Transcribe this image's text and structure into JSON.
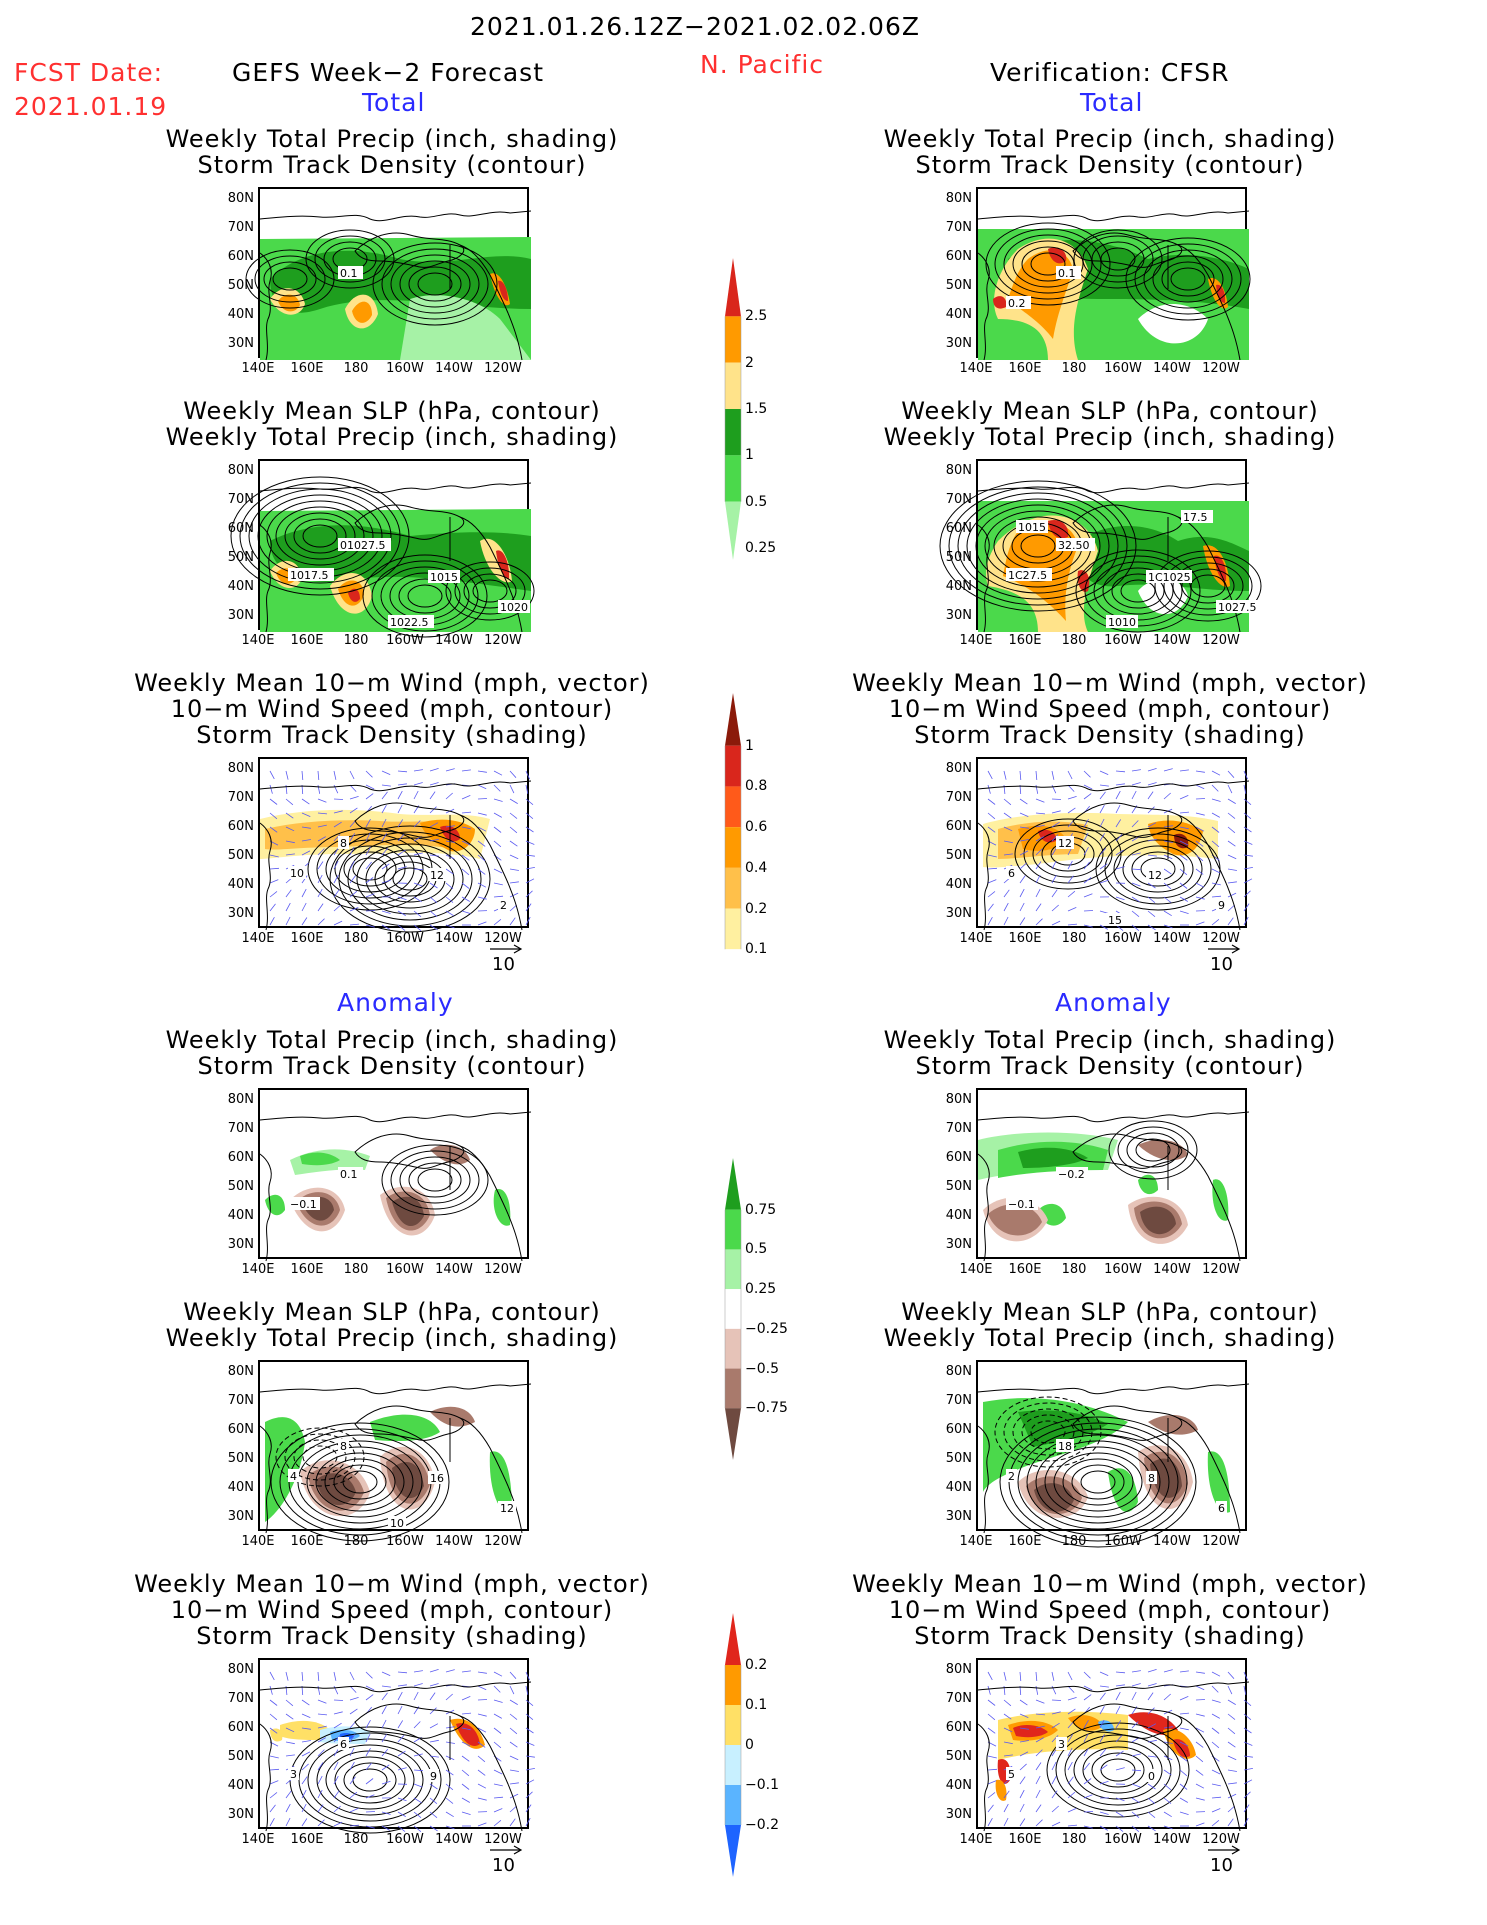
{
  "header": {
    "date_range": "2021.01.26.12Z−2021.02.02.06Z",
    "fcst_label": "FCST Date:",
    "fcst_date": "2021.01.19",
    "forecast_title": "GEFS Week−2 Forecast",
    "region": "N. Pacific",
    "verification": "Verification: CFSR"
  },
  "sections": {
    "total": "Total",
    "anomaly": "Anomaly"
  },
  "panel_titles": {
    "precip_storm": [
      "Weekly Total Precip (inch, shading)",
      "Storm Track Density (contour)"
    ],
    "slp_precip": [
      "Weekly Mean SLP (hPa, contour)",
      "Weekly Total Precip (inch, shading)"
    ],
    "wind_storm": [
      "Weekly Mean 10−m Wind (mph, vector)",
      "10−m Wind Speed (mph, contour)",
      "Storm Track Density (shading)"
    ]
  },
  "axes": {
    "lat": [
      "80N",
      "70N",
      "60N",
      "50N",
      "40N",
      "30N"
    ],
    "lon": [
      "140E",
      "160E",
      "180",
      "160W",
      "140W",
      "120W"
    ]
  },
  "vector_scale": "10",
  "colorbars": [
    {
      "name": "precip-total",
      "labels": [
        "2.5",
        "2",
        "1.5",
        "1",
        "0.5",
        "0.25"
      ],
      "colors": [
        "#d9261c",
        "#ff9a00",
        "#ffe38a",
        "#1e9e1e",
        "#4bd94b",
        "#a6f2a6"
      ]
    },
    {
      "name": "storm-total",
      "labels": [
        "1",
        "0.8",
        "0.6",
        "0.4",
        "0.2",
        "0.1"
      ],
      "colors": [
        "#8b1a0a",
        "#d9261c",
        "#ff5a1a",
        "#ff9a00",
        "#ffc04a",
        "#fff0a0",
        "#ffffff"
      ]
    },
    {
      "name": "precip-anom",
      "labels": [
        "0.75",
        "0.5",
        "0.25",
        "−0.25",
        "−0.5",
        "−0.75"
      ],
      "colors": [
        "#1e9e1e",
        "#4bd94b",
        "#a6f2a6",
        "#ffffff",
        "#e6c3b8",
        "#a97a6c",
        "#6e4a40"
      ]
    },
    {
      "name": "storm-anom",
      "labels": [
        "0.2",
        "0.1",
        "0",
        "−0.1",
        "−0.2"
      ],
      "colors": [
        "#e0261c",
        "#ff9a00",
        "#ffe066",
        "#c8f0ff",
        "#5ab4ff",
        "#1e64ff"
      ]
    }
  ],
  "contour_labels": {
    "L1": [
      "0.1"
    ],
    "R1": [
      "0.1",
      "0.2"
    ],
    "L2": [
      "01027.5",
      "1017.5",
      "1015",
      "1020",
      "1022.5"
    ],
    "R2": [
      "32.50",
      "1C27.5",
      "1C1025",
      "1027.5",
      "1010",
      "1015",
      "17.5"
    ],
    "L3": [
      "8",
      "10",
      "12",
      "2"
    ],
    "R3": [
      "12",
      "6",
      "12",
      "9",
      "15"
    ],
    "L4": [
      "0.1",
      "−0.1"
    ],
    "R4": [
      "−0.2",
      "−0.1"
    ],
    "L5": [
      "8",
      "4",
      "16",
      "12",
      "10"
    ],
    "R5": [
      "18",
      "2",
      "8",
      "6"
    ],
    "L6": [
      "6",
      "3",
      "9"
    ],
    "R6": [
      "3",
      "5",
      "0"
    ]
  },
  "colors": {
    "header_red": "#ff3030",
    "section_blue": "#2a2aff",
    "vector_blue": "#5a5af0"
  },
  "chart_data": [
    {
      "id": "L1",
      "type": "heatmap",
      "title": "Weekly Total Precip (inch, shading) / Storm Track Density (contour)",
      "section": "Total",
      "source": "GEFS Week−2 Forecast"
    },
    {
      "id": "R1",
      "type": "heatmap",
      "title": "Weekly Total Precip (inch, shading) / Storm Track Density (contour)",
      "section": "Total",
      "source": "Verification: CFSR"
    },
    {
      "id": "L2",
      "type": "heatmap",
      "title": "Weekly Mean SLP (hPa, contour) / Weekly Total Precip (inch, shading)",
      "section": "Total",
      "source": "GEFS Week−2 Forecast"
    },
    {
      "id": "R2",
      "type": "heatmap",
      "title": "Weekly Mean SLP (hPa, contour) / Weekly Total Precip (inch, shading)",
      "section": "Total",
      "source": "Verification: CFSR"
    },
    {
      "id": "L3",
      "type": "heatmap",
      "title": "Weekly Mean 10−m Wind (mph, vector) / 10−m Wind Speed (mph, contour) / Storm Track Density (shading)",
      "section": "Total",
      "source": "GEFS Week−2 Forecast"
    },
    {
      "id": "R3",
      "type": "heatmap",
      "title": "Weekly Mean 10−m Wind (mph, vector) / 10−m Wind Speed (mph, contour) / Storm Track Density (shading)",
      "section": "Total",
      "source": "Verification: CFSR"
    },
    {
      "id": "L4",
      "type": "heatmap",
      "title": "Weekly Total Precip (inch, shading) / Storm Track Density (contour)",
      "section": "Anomaly",
      "source": "GEFS Week−2 Forecast"
    },
    {
      "id": "R4",
      "type": "heatmap",
      "title": "Weekly Total Precip (inch, shading) / Storm Track Density (contour)",
      "section": "Anomaly",
      "source": "Verification: CFSR"
    },
    {
      "id": "L5",
      "type": "heatmap",
      "title": "Weekly Mean SLP (hPa, contour) / Weekly Total Precip (inch, shading)",
      "section": "Anomaly",
      "source": "GEFS Week−2 Forecast"
    },
    {
      "id": "R5",
      "type": "heatmap",
      "title": "Weekly Mean SLP (hPa, contour) / Weekly Total Precip (inch, shading)",
      "section": "Anomaly",
      "source": "Verification: CFSR"
    },
    {
      "id": "L6",
      "type": "heatmap",
      "title": "Weekly Mean 10−m Wind (mph, vector) / 10−m Wind Speed (mph, contour) / Storm Track Density (shading)",
      "section": "Anomaly",
      "source": "GEFS Week−2 Forecast"
    },
    {
      "id": "R6",
      "type": "heatmap",
      "title": "Weekly Mean 10−m Wind (mph, vector) / 10−m Wind Speed (mph, contour) / Storm Track Density (shading)",
      "section": "Anomaly",
      "source": "Verification: CFSR"
    }
  ]
}
